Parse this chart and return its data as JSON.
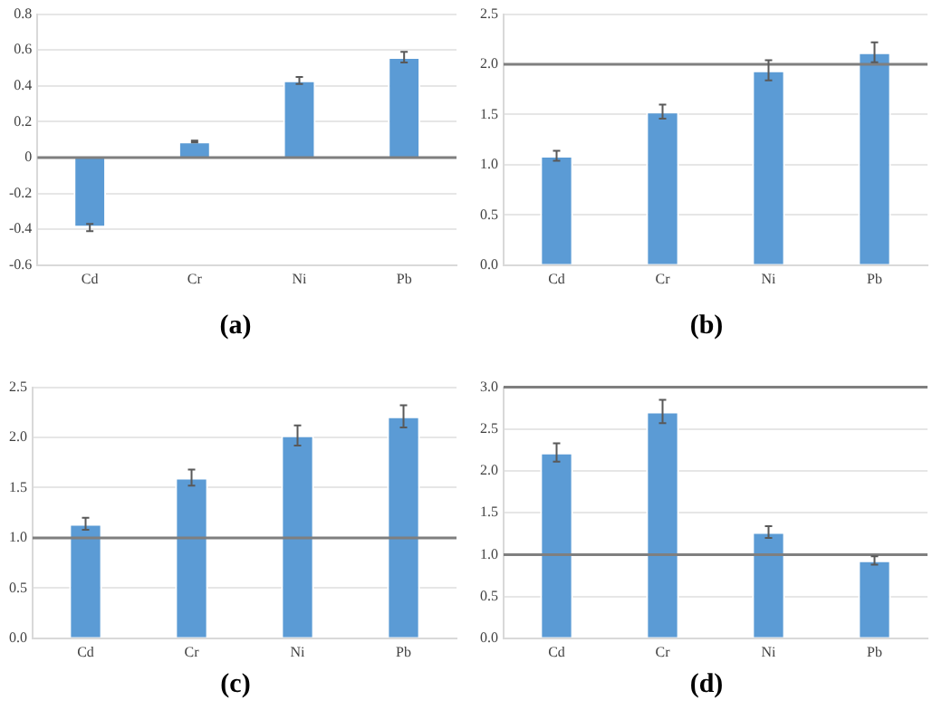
{
  "chart_data": [
    {
      "type": "bar",
      "xlabel": "(a)",
      "categories": [
        "Cd",
        "Cr",
        "Ni",
        "Pb"
      ],
      "values": [
        -0.39,
        0.09,
        0.43,
        0.56
      ],
      "errors": [
        0.02,
        0.005,
        0.02,
        0.03
      ],
      "color": "#5b9bd5",
      "ylim": [
        -0.6,
        0.8
      ],
      "yticks": [
        {
          "value": -0.6,
          "label": "-0.6"
        },
        {
          "value": -0.4,
          "label": "-0.4"
        },
        {
          "value": -0.2,
          "label": "-0.2"
        },
        0,
        0.2,
        0.4,
        0.6,
        0.8
      ],
      "grid": "y",
      "legend": false,
      "ref_lines": [
        {
          "axis": "y",
          "value": 0,
          "color": "#7f7f7f"
        }
      ]
    },
    {
      "type": "bar",
      "xlabel": "(b)",
      "categories": [
        "Cd",
        "Cr",
        "Ni",
        "Pb"
      ],
      "values": [
        1.09,
        1.53,
        1.94,
        2.12
      ],
      "errors": [
        0.05,
        0.07,
        0.1,
        0.1
      ],
      "color": "#5b9bd5",
      "ylim": [
        0,
        2.5
      ],
      "yticks": [
        {
          "value": 0,
          "label": "0.0"
        },
        0.5,
        {
          "value": 1,
          "label": "1.0"
        },
        1.5,
        {
          "value": 2,
          "label": "2.0"
        },
        2.5
      ],
      "grid": "y",
      "legend": false,
      "ref_lines": [
        {
          "axis": "y",
          "value": 2,
          "color": "#7f7f7f"
        }
      ]
    },
    {
      "type": "bar",
      "xlabel": "(c)",
      "categories": [
        "Cd",
        "Cr",
        "Ni",
        "Pb"
      ],
      "values": [
        1.14,
        1.6,
        2.02,
        2.21
      ],
      "errors": [
        0.06,
        0.08,
        0.1,
        0.11
      ],
      "color": "#5b9bd5",
      "ylim": [
        0,
        2.5
      ],
      "yticks": [
        {
          "value": 0,
          "label": "0.0"
        },
        0.5,
        {
          "value": 1,
          "label": "1.0"
        },
        1.5,
        {
          "value": 2,
          "label": "2.0"
        },
        2.5
      ],
      "grid": "y",
      "legend": false,
      "ref_lines": [
        {
          "axis": "y",
          "value": 1,
          "color": "#7f7f7f"
        }
      ]
    },
    {
      "type": "bar",
      "xlabel": "(d)",
      "categories": [
        "Cd",
        "Cr",
        "Ni",
        "Pb"
      ],
      "values": [
        2.22,
        2.71,
        1.27,
        0.93
      ],
      "errors": [
        0.11,
        0.14,
        0.07,
        0.05
      ],
      "color": "#5b9bd5",
      "ylim": [
        0,
        3
      ],
      "yticks": [
        {
          "value": 0,
          "label": "0.0"
        },
        0.5,
        {
          "value": 1,
          "label": "1.0"
        },
        1.5,
        {
          "value": 2,
          "label": "2.0"
        },
        2.5,
        {
          "value": 3,
          "label": "3.0"
        }
      ],
      "grid": "y",
      "legend": false,
      "ref_lines": [
        {
          "axis": "y",
          "value": 1,
          "color": "#7f7f7f"
        },
        {
          "axis": "y",
          "value": 3,
          "color": "#7f7f7f"
        }
      ]
    }
  ]
}
